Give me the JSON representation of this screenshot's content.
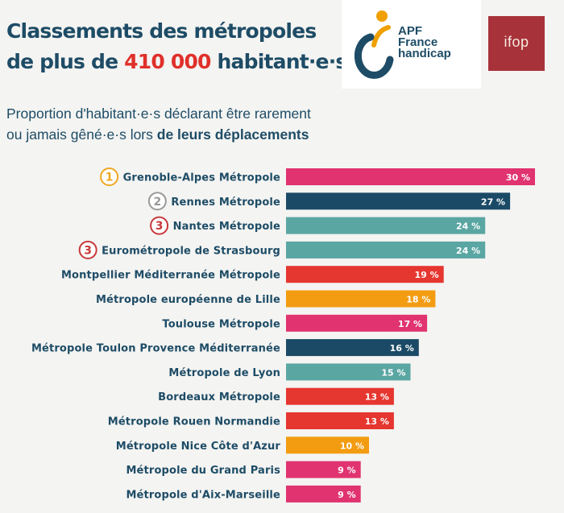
{
  "header": {
    "title_line1": "Classements des métropoles",
    "title_line2_prefix": "de plus de ",
    "title_line2_highlight": "410 000",
    "title_line2_suffix": " habitant·e·s",
    "subtitle_line1": "Proportion d'habitant·e·s déclarant être rarement",
    "subtitle_line2_prefix": "ou jamais gêné·e·s lors ",
    "subtitle_line2_bold": "de leurs déplacements"
  },
  "logos": {
    "apf_line1": "APF",
    "apf_line2": "France",
    "apf_line3": "handicap",
    "ifop": "ifop"
  },
  "chart_data": {
    "type": "bar",
    "orientation": "horizontal",
    "unit": "%",
    "xlim": [
      0,
      30
    ],
    "categories": [
      "Grenoble-Alpes Métropole",
      "Rennes Métropole",
      "Nantes Métropole",
      "Eurométropole de Strasbourg",
      "Montpellier Méditerranée Métropole",
      "Métropole européenne de Lille",
      "Toulouse Métropole",
      "Métropole Toulon Provence Méditerranée",
      "Métropole de Lyon",
      "Bordeaux Métropole",
      "Métropole Rouen Normandie",
      "Métropole Nice Côte d'Azur",
      "Métropole du Grand Paris",
      "Métropole d'Aix-Marseille"
    ],
    "values": [
      30,
      27,
      24,
      24,
      19,
      18,
      17,
      16,
      15,
      13,
      13,
      10,
      9,
      9
    ],
    "value_labels": [
      "30 %",
      "27 %",
      "24 %",
      "24 %",
      "19 %",
      "18 %",
      "17 %",
      "16 %",
      "15 %",
      "13 %",
      "13 %",
      "10 %",
      "9 %",
      "9 %"
    ],
    "ranks": [
      "1",
      "2",
      "3",
      "3",
      "",
      "",
      "",
      "",
      "",
      "",
      "",
      "",
      "",
      ""
    ],
    "rank_colors": [
      "#f0a820",
      "#9a9a9a",
      "#c8383a",
      "#c8383a",
      "",
      "",
      "",
      "",
      "",
      "",
      "",
      "",
      "",
      ""
    ],
    "bar_colors": [
      "#e0336f",
      "#1b4a66",
      "#5aa6a3",
      "#5aa6a3",
      "#e5362f",
      "#f39c12",
      "#e0336f",
      "#1b4a66",
      "#5aa6a3",
      "#e5362f",
      "#e5362f",
      "#f39c12",
      "#e0336f",
      "#e0336f"
    ],
    "label_color": "#1e4c66"
  }
}
